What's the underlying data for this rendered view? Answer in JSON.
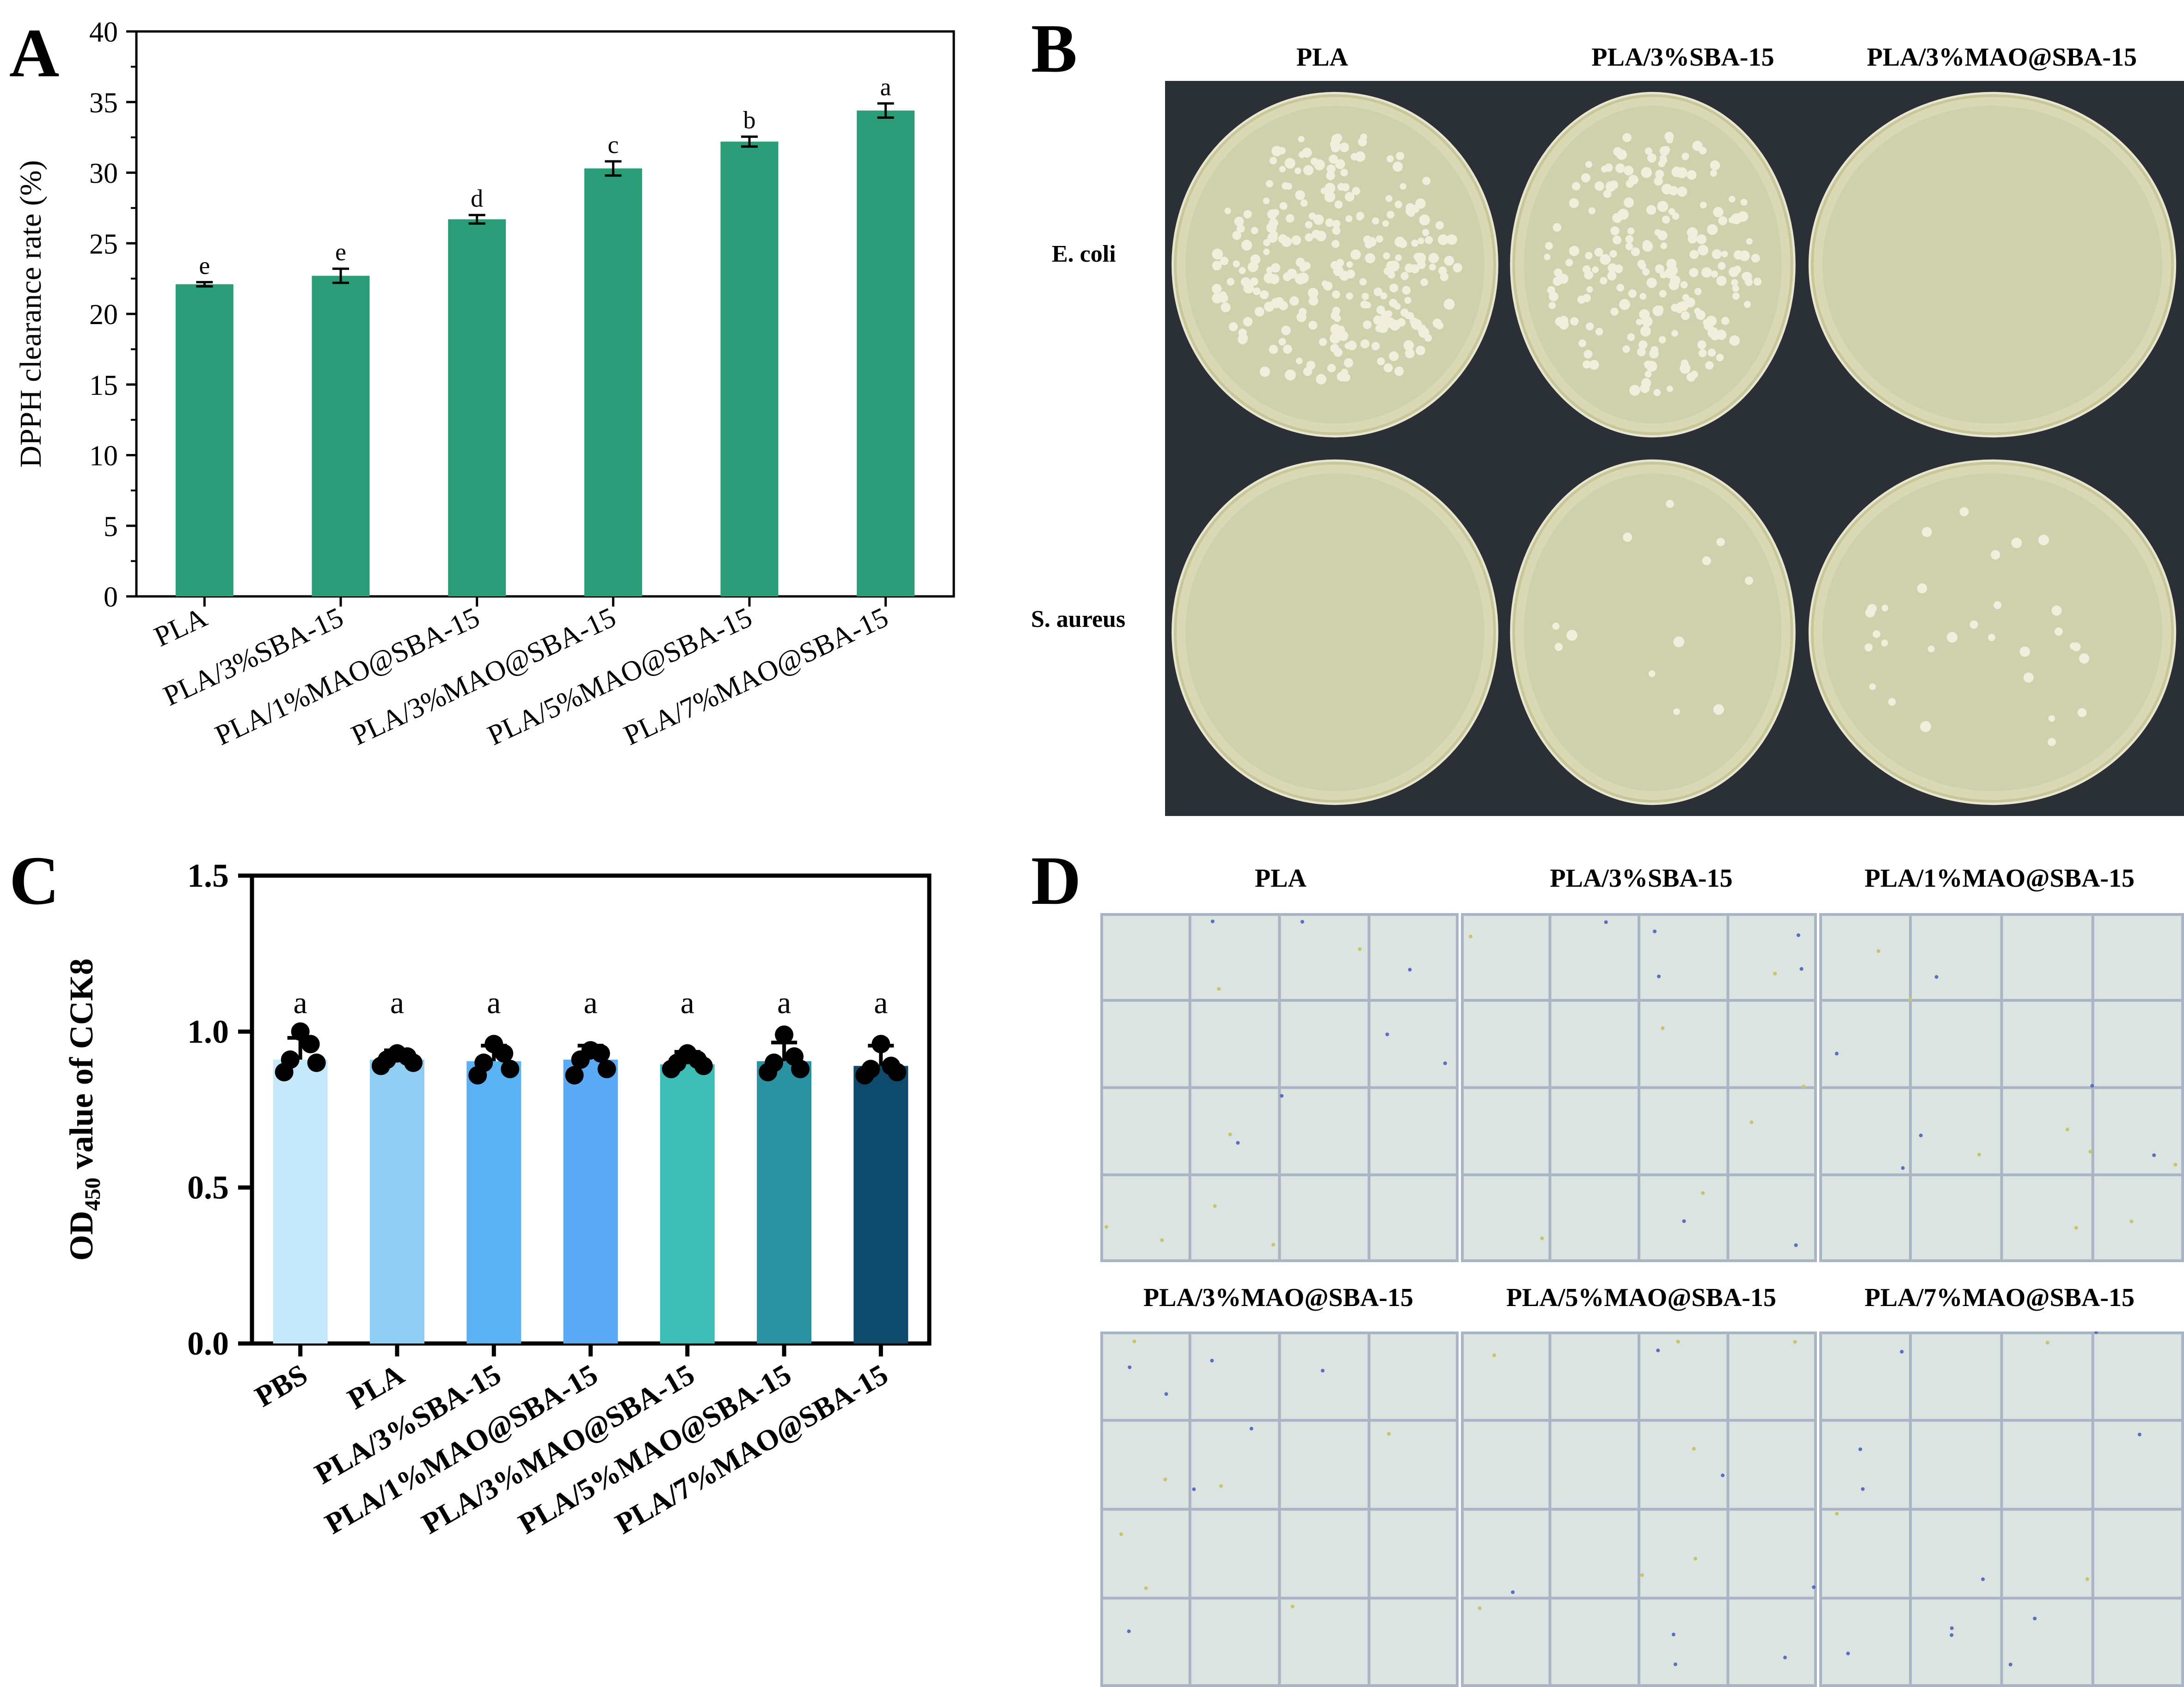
{
  "panels": {
    "a": "A",
    "b": "B",
    "c": "C",
    "d": "D"
  },
  "chart_data": [
    {
      "type": "bar",
      "panel": "A",
      "ylabel": "DPPH clearance rate (%)",
      "ylim": [
        0,
        40
      ],
      "yticks": [
        0,
        5,
        10,
        15,
        20,
        25,
        30,
        35,
        40
      ],
      "categories": [
        "PLA",
        "PLA/3%SBA-15",
        "PLA/1%MAO@SBA-15",
        "PLA/3%MAO@SBA-15",
        "PLA/5%MAO@SBA-15",
        "PLA/7%MAO@SBA-15"
      ],
      "values": [
        22.1,
        22.7,
        26.7,
        30.3,
        32.2,
        34.4
      ],
      "errors": [
        0.15,
        0.5,
        0.3,
        0.5,
        0.35,
        0.5
      ],
      "letters": [
        "e",
        "e",
        "d",
        "c",
        "b",
        "a"
      ],
      "color": "#2a9d78"
    },
    {
      "type": "bar",
      "panel": "C",
      "ylabel_main": "OD",
      "ylabel_sub": "450",
      "ylabel_rest": " value of CCK8",
      "ylim": [
        0,
        1.5
      ],
      "yticks": [
        "0.0",
        "0.5",
        "1.0",
        "1.5"
      ],
      "categories": [
        "PBS",
        "PLA",
        "PLA/3%SBA-15",
        "PLA/1%MAO@SBA-15",
        "PLA/3%MAO@SBA-15",
        "PLA/5%MAO@SBA-15",
        "PLA/7%MAO@SBA-15"
      ],
      "values": [
        0.91,
        0.91,
        0.905,
        0.91,
        0.895,
        0.905,
        0.89
      ],
      "errors": [
        0.07,
        0.03,
        0.05,
        0.045,
        0.04,
        0.06,
        0.065
      ],
      "points": [
        [
          0.87,
          0.9,
          0.91,
          0.96,
          1.0
        ],
        [
          0.89,
          0.9,
          0.91,
          0.92,
          0.93
        ],
        [
          0.86,
          0.88,
          0.9,
          0.93,
          0.96
        ],
        [
          0.86,
          0.88,
          0.91,
          0.93,
          0.94
        ],
        [
          0.88,
          0.89,
          0.9,
          0.91,
          0.93
        ],
        [
          0.87,
          0.88,
          0.9,
          0.92,
          0.99
        ],
        [
          0.86,
          0.87,
          0.88,
          0.89,
          0.96
        ]
      ],
      "letters": [
        "a",
        "a",
        "a",
        "a",
        "a",
        "a",
        "a"
      ],
      "colors": [
        "#c5e8fb",
        "#8fcdf5",
        "#5ab2f5",
        "#5aaaf5",
        "#3dbdb5",
        "#2a92a1",
        "#0d4a6b"
      ]
    }
  ],
  "panel_b": {
    "columns": [
      "PLA",
      "PLA/3%SBA-15",
      "PLA/3%MAO@SBA-15"
    ],
    "rows": [
      "E. coli",
      "S. aureus"
    ]
  },
  "panel_d": {
    "top_labels": [
      "PLA",
      "PLA/3%SBA-15",
      "PLA/1%MAO@SBA-15"
    ],
    "bottom_labels": [
      "PLA/3%MAO@SBA-15",
      "PLA/5%MAO@SBA-15",
      "PLA/7%MAO@SBA-15"
    ]
  }
}
